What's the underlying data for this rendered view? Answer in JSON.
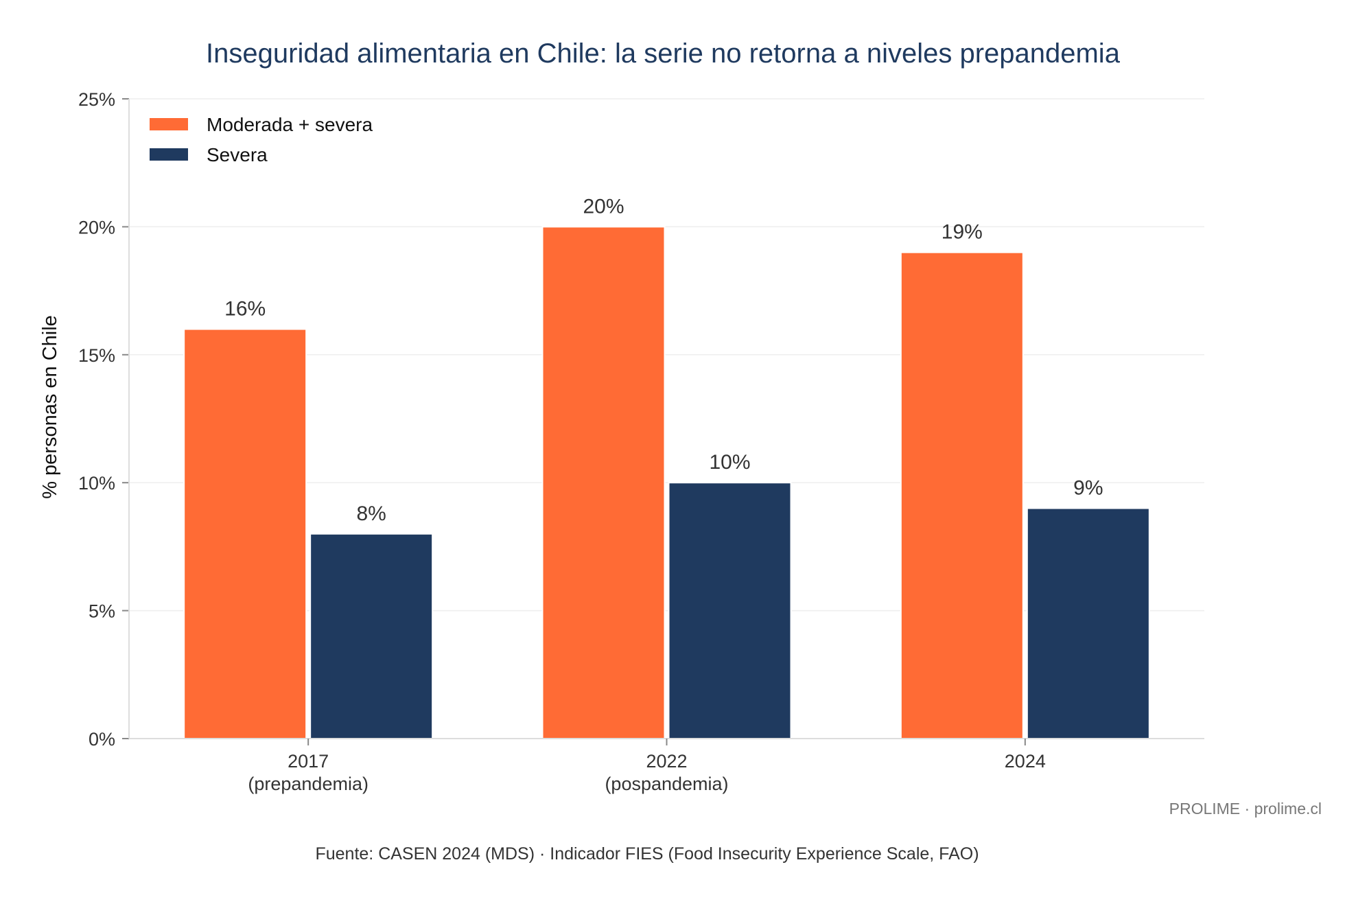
{
  "chart_data": {
    "type": "bar",
    "title": "Inseguridad alimentaria en Chile: la serie no retorna a niveles prepandemia",
    "xlabel": "",
    "ylabel": "% personas en Chile",
    "categories": [
      [
        "2017",
        "(prepandemia)"
      ],
      [
        "2022",
        "(pospandemia)"
      ],
      [
        "2024"
      ]
    ],
    "series": [
      {
        "name": "Moderada + severa",
        "color": "#FF6B35",
        "values": [
          16,
          20,
          19
        ],
        "labels": [
          "16%",
          "20%",
          "19%"
        ]
      },
      {
        "name": "Severa",
        "color": "#1F3A5F",
        "values": [
          8,
          10,
          9
        ],
        "labels": [
          "8%",
          "10%",
          "9%"
        ]
      }
    ],
    "ylim": [
      0,
      25
    ],
    "yticks": [
      0,
      5,
      10,
      15,
      20,
      25
    ],
    "ytick_labels": [
      "0%",
      "5%",
      "10%",
      "15%",
      "20%",
      "25%"
    ],
    "grid": true,
    "legend_position": "top-left"
  },
  "credit": "PROLIME · prolime.cl",
  "source": "Fuente: CASEN 2024 (MDS) · Indicador FIES (Food Insecurity Experience Scale, FAO)",
  "colors": {
    "title": "#1F3A5F",
    "text": "#333333",
    "muted": "#777777",
    "grid": "#EEEEEE",
    "axis": "#DDDDDD"
  }
}
